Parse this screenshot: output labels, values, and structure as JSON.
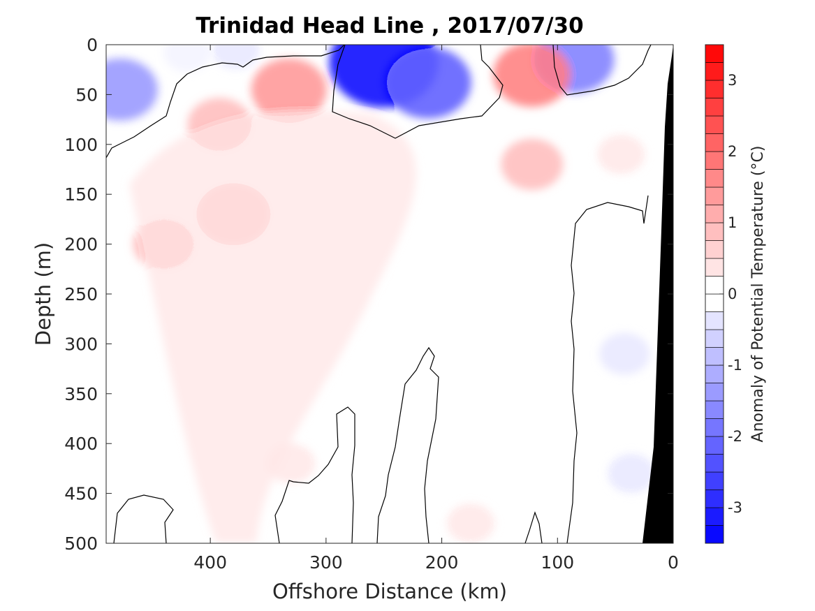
{
  "chart_data": {
    "type": "heatmap",
    "title": "Trinidad Head Line , 2017/07/30",
    "xlabel": "Offshore Distance (km)",
    "ylabel": "Depth (m)",
    "xlim": [
      490,
      0
    ],
    "x_reversed": true,
    "ylim": [
      0,
      500
    ],
    "y_reversed": true,
    "xticks": [
      400,
      300,
      200,
      100,
      0
    ],
    "yticks": [
      0,
      50,
      100,
      150,
      200,
      250,
      300,
      350,
      400,
      450,
      500
    ],
    "colorbar": {
      "label": "Anomaly of Potential Temperature (°C)",
      "range": [
        -3.5,
        3.5
      ],
      "level_step": 0.25,
      "ticks": [
        -3,
        -2,
        -1,
        0,
        1,
        2,
        3
      ],
      "negative_color": "#0000ff",
      "positive_color": "#ff0000",
      "neutral_color": "#ffffff"
    },
    "zero_contour": true,
    "bottom_mask_color": "#000000",
    "anomaly_features": [
      {
        "x": 478,
        "depth": 45,
        "value": -1.5
      },
      {
        "x": 420,
        "depth": 8,
        "value": -0.25
      },
      {
        "x": 378,
        "depth": 5,
        "value": -0.3
      },
      {
        "x": 250,
        "depth": 18,
        "value": -3.0
      },
      {
        "x": 212,
        "depth": 38,
        "value": -2.0
      },
      {
        "x": 86,
        "depth": 15,
        "value": -1.75
      },
      {
        "x": 42,
        "depth": 310,
        "value": -0.4
      },
      {
        "x": 36,
        "depth": 430,
        "value": -0.3
      },
      {
        "x": 392,
        "depth": 80,
        "value": 1.0
      },
      {
        "x": 380,
        "depth": 170,
        "value": 1.3
      },
      {
        "x": 440,
        "depth": 200,
        "value": 0.9
      },
      {
        "x": 332,
        "depth": 45,
        "value": 1.5
      },
      {
        "x": 122,
        "depth": 30,
        "value": 1.6
      },
      {
        "x": 122,
        "depth": 120,
        "value": 0.9
      },
      {
        "x": 330,
        "depth": 420,
        "value": 0.3
      },
      {
        "x": 175,
        "depth": 480,
        "value": 0.3
      },
      {
        "x": 45,
        "depth": 110,
        "value": 0.3
      }
    ]
  }
}
